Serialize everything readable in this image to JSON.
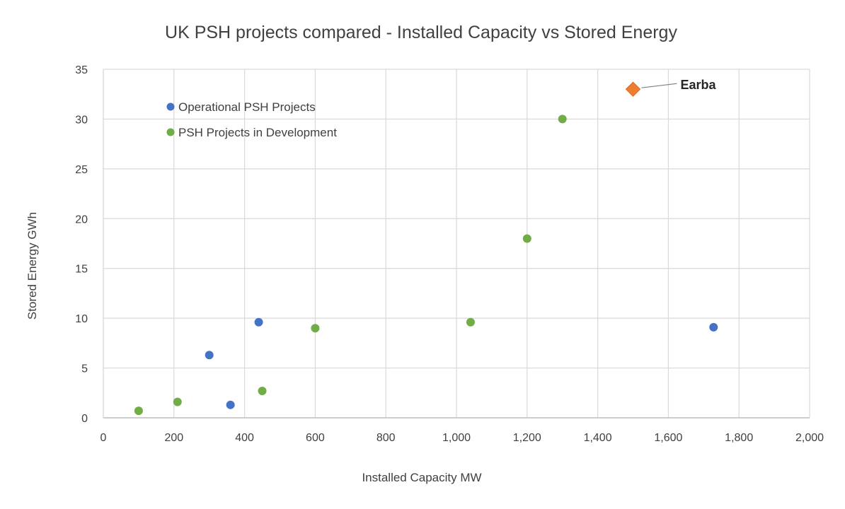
{
  "chart_data": {
    "type": "scatter",
    "title": "UK PSH projects compared - Installed Capacity vs Stored Energy",
    "xlabel": "Installed Capacity MW",
    "ylabel": "Stored Energy GWh",
    "xlim": [
      0,
      2000
    ],
    "ylim": [
      0,
      35
    ],
    "xticks": [
      0,
      200,
      400,
      600,
      800,
      1000,
      1200,
      1400,
      1600,
      1800,
      2000
    ],
    "xtick_labels": [
      "0",
      "200",
      "400",
      "600",
      "800",
      "1,000",
      "1,200",
      "1,400",
      "1,600",
      "1,800",
      "2,000"
    ],
    "yticks": [
      0,
      5,
      10,
      15,
      20,
      25,
      30,
      35
    ],
    "ytick_labels": [
      "0",
      "5",
      "10",
      "15",
      "20",
      "25",
      "30",
      "35"
    ],
    "grid": true,
    "legend_position": "top-left",
    "series": [
      {
        "name": "Operational PSH Projects",
        "color": "#4472c4",
        "marker": "circle",
        "points": [
          [
            300,
            6.3
          ],
          [
            360,
            1.3
          ],
          [
            440,
            9.6
          ],
          [
            1728,
            9.1
          ]
        ]
      },
      {
        "name": "PSH Projects in Development",
        "color": "#70ad47",
        "marker": "circle",
        "points": [
          [
            100,
            0.7
          ],
          [
            210,
            1.6
          ],
          [
            450,
            2.7
          ],
          [
            600,
            9.0
          ],
          [
            1040,
            9.6
          ],
          [
            1200,
            18.0
          ],
          [
            1300,
            30.0
          ]
        ]
      },
      {
        "name": "Earba",
        "color": "#ed7d31",
        "marker": "diamond",
        "show_in_legend": false,
        "points": [
          [
            1500,
            33.0
          ]
        ]
      }
    ],
    "annotations": [
      {
        "text": "Earba",
        "x": 1500,
        "y": 33.0
      }
    ]
  }
}
